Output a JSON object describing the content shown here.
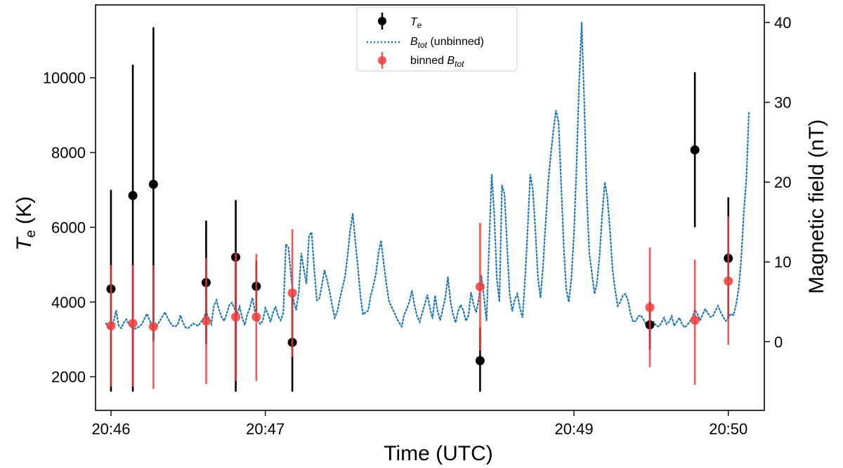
{
  "chart_data": {
    "type": "scatter",
    "xlabel": "Time (UTC)",
    "ylabel_left_main": "T",
    "ylabel_left_sub": "e",
    "ylabel_left_unit": "(K)",
    "ylabel_right": "Magnetic field (nT)",
    "x_ticks": [
      "20:46",
      "20:47",
      "20:49",
      "20:50"
    ],
    "x_tick_positions_s": [
      0,
      60,
      180,
      240
    ],
    "xlim_s": [
      -6,
      254
    ],
    "y_left_ticks": [
      2000,
      4000,
      6000,
      8000,
      10000
    ],
    "ylim_left": [
      1100,
      11950
    ],
    "y_right_ticks": [
      0,
      10,
      20,
      30,
      40
    ],
    "ylim_right": [
      -8.6,
      42.2
    ],
    "legend": {
      "position": "top-center",
      "te_main": "T",
      "te_sub": "e",
      "btot_main": "B",
      "btot_sub": "tot",
      "btot_suffix": " (unbinned)",
      "binned_prefix": "binned ",
      "binned_main": "B",
      "binned_sub": "tot"
    },
    "colors": {
      "te": "#000000",
      "btot": "#1f77b4",
      "binned": "#f03c3c"
    },
    "series": [
      {
        "key": "te",
        "points": [
          {
            "t": 0,
            "y": 4350,
            "lo": 1600,
            "hi": 7000
          },
          {
            "t": 8.5,
            "y": 6850,
            "lo": 1600,
            "hi": 10350
          },
          {
            "t": 16.5,
            "y": 7150,
            "lo": 2950,
            "hi": 11350
          },
          {
            "t": 37,
            "y": 4520,
            "lo": 2880,
            "hi": 6180
          },
          {
            "t": 48.5,
            "y": 5200,
            "lo": 1600,
            "hi": 6730
          },
          {
            "t": 56.5,
            "y": 4420,
            "lo": 3750,
            "hi": 5110
          },
          {
            "t": 70.5,
            "y": 2920,
            "lo": 1600,
            "hi": 4200
          },
          {
            "t": 143.5,
            "y": 2430,
            "lo": 1600,
            "hi": 3320
          },
          {
            "t": 209.5,
            "y": 3390,
            "lo": 2730,
            "hi": 4020
          },
          {
            "t": 227,
            "y": 8070,
            "lo": 6000,
            "hi": 10150
          },
          {
            "t": 240,
            "y": 5170,
            "lo": 3560,
            "hi": 6800
          }
        ]
      },
      {
        "key": "binned",
        "points": [
          {
            "t": 0,
            "y": 2.0,
            "lo": -5.6,
            "hi": 9.6
          },
          {
            "t": 8.5,
            "y": 2.3,
            "lo": -5.6,
            "hi": 9.6
          },
          {
            "t": 16.5,
            "y": 1.9,
            "lo": -5.9,
            "hi": 9.6
          },
          {
            "t": 37,
            "y": 2.6,
            "lo": -5.3,
            "hi": 10.5
          },
          {
            "t": 48.5,
            "y": 3.1,
            "lo": -4.9,
            "hi": 11.2
          },
          {
            "t": 56.5,
            "y": 3.1,
            "lo": -4.9,
            "hi": 11.0
          },
          {
            "t": 70.5,
            "y": 6.1,
            "lo": -1.9,
            "hi": 14.1
          },
          {
            "t": 143.5,
            "y": 6.9,
            "lo": -1.1,
            "hi": 14.9
          },
          {
            "t": 209.5,
            "y": 4.3,
            "lo": -3.2,
            "hi": 11.8
          },
          {
            "t": 227,
            "y": 2.7,
            "lo": -5.4,
            "hi": 10.3
          },
          {
            "t": 240,
            "y": 7.6,
            "lo": -0.4,
            "hi": 15.7
          }
        ]
      },
      {
        "key": "btot",
        "style": "dotted",
        "t_start": -2,
        "t_step": 1,
        "values": [
          2.3,
          1.9,
          1.8,
          2.5,
          3.9,
          2.0,
          1.7,
          2.4,
          2.8,
          2.2,
          1.8,
          1.6,
          1.7,
          1.9,
          2.2,
          2.9,
          3.5,
          2.7,
          1.9,
          1.8,
          2.1,
          2.6,
          3.2,
          3.7,
          3.0,
          2.4,
          2.0,
          1.9,
          2.2,
          3.3,
          2.4,
          1.8,
          1.7,
          2.0,
          2.3,
          2.1,
          2.0,
          2.5,
          2.9,
          3.8,
          2.9,
          2.2,
          4.5,
          5.2,
          4.0,
          3.1,
          2.6,
          3.5,
          4.6,
          4.9,
          4.2,
          3.5,
          4.4,
          3.0,
          2.1,
          3.4,
          4.3,
          5.5,
          3.7,
          2.8,
          2.2,
          2.6,
          4.2,
          3.5,
          2.5,
          3.6,
          4.4,
          3.2,
          2.7,
          3.6,
          12.2,
          11.8,
          8.2,
          5.1,
          4.0,
          6.2,
          11.1,
          9.0,
          7.3,
          13.3,
          13.7,
          9.2,
          5.2,
          5.4,
          7.1,
          9.0,
          7.8,
          6.3,
          4.5,
          3.0,
          3.8,
          5.4,
          6.8,
          8.2,
          10.8,
          14.0,
          16.1,
          12.5,
          9.3,
          5.7,
          3.4,
          3.7,
          3.9,
          5.8,
          7.0,
          8.5,
          11.1,
          12.7,
          9.9,
          7.4,
          5.2,
          4.4,
          3.8,
          3.0,
          2.4,
          1.9,
          3.4,
          4.1,
          5.0,
          6.4,
          4.6,
          3.2,
          2.5,
          3.6,
          4.7,
          5.9,
          4.2,
          2.9,
          5.8,
          3.8,
          2.7,
          4.1,
          5.6,
          8.1,
          5.0,
          3.4,
          2.4,
          3.9,
          4.6,
          3.9,
          2.6,
          3.3,
          6.2,
          4.6,
          3.7,
          5.4,
          8.3,
          5.6,
          2.6,
          12.0,
          21.0,
          16.0,
          8.0,
          5.0,
          19.6,
          18.5,
          12.0,
          6.0,
          3.8,
          5.3,
          6.0,
          4.2,
          3.0,
          8.0,
          14.0,
          21.0,
          19.0,
          14.0,
          8.0,
          5.5,
          9.6,
          15.0,
          20.0,
          23.5,
          26.5,
          29.0,
          27.5,
          20.0,
          12.0,
          6.5,
          5.0,
          8.0,
          13.5,
          22.0,
          32.5,
          40.0,
          30.0,
          18.0,
          11.0,
          8.5,
          6.0,
          7.5,
          11.0,
          16.0,
          20.0,
          18.0,
          14.0,
          9.0,
          6.5,
          4.5,
          5.0,
          5.8,
          6.0,
          5.2,
          3.5,
          2.5,
          2.6,
          3.2,
          3.3,
          2.8,
          2.2,
          2.0,
          2.3,
          2.5,
          2.0,
          1.9,
          2.4,
          3.0,
          2.2,
          2.5,
          3.2,
          2.0,
          2.5,
          3.0,
          2.2,
          1.8,
          2.1,
          2.5,
          3.0,
          4.0,
          3.5,
          2.7,
          3.4,
          4.1,
          3.6,
          3.1,
          3.2,
          3.9,
          4.5,
          3.7,
          3.1,
          2.6,
          3.0,
          3.5,
          3.3,
          4.6,
          6.6,
          10.2,
          16.1,
          20.3,
          28.7
        ]
      }
    ]
  }
}
